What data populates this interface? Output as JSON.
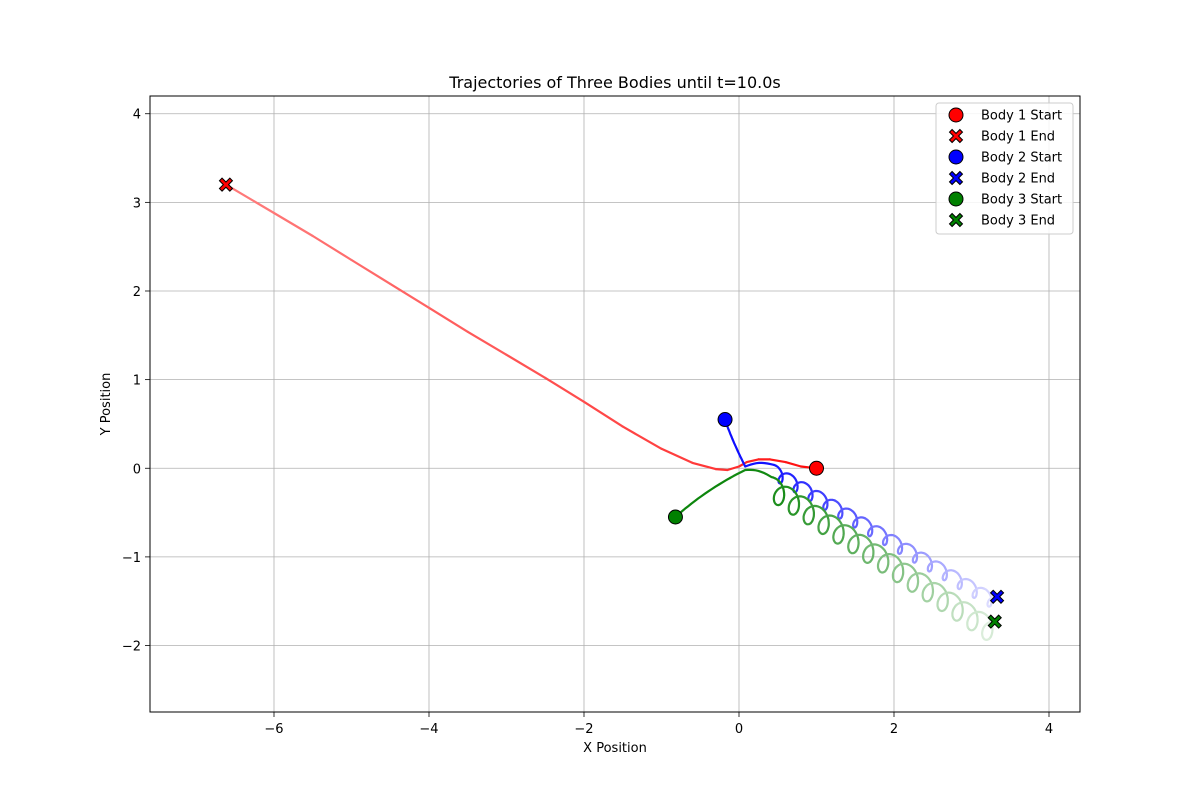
{
  "chart_data": {
    "type": "scatter",
    "title": "Trajectories of Three Bodies until t=10.0s",
    "xlabel": "X Position",
    "ylabel": "Y Position",
    "xlim": [
      -7.6,
      4.4
    ],
    "ylim": [
      -2.75,
      4.2
    ],
    "xticks": [
      -6,
      -4,
      -2,
      0,
      2,
      4
    ],
    "yticks": [
      -2,
      -1,
      0,
      1,
      2,
      3,
      4
    ],
    "xtick_labels": [
      "−6",
      "−4",
      "−2",
      "0",
      "2",
      "4"
    ],
    "ytick_labels": [
      "−2",
      "−1",
      "0",
      "1",
      "2",
      "3",
      "4"
    ],
    "grid": true,
    "legend_position": "top-right",
    "series": [
      {
        "name": "Body 1",
        "color": "#ff0000",
        "start_label": "Body 1 Start",
        "end_label": "Body 1 End",
        "start": [
          1.0,
          0.0
        ],
        "end": [
          -6.62,
          3.2
        ],
        "path": [
          [
            1.0,
            0.0
          ],
          [
            0.8,
            0.02
          ],
          [
            0.6,
            0.07
          ],
          [
            0.4,
            0.1
          ],
          [
            0.25,
            0.1
          ],
          [
            0.1,
            0.07
          ],
          [
            0.0,
            0.02
          ],
          [
            -0.15,
            -0.02
          ],
          [
            -0.3,
            -0.01
          ],
          [
            -0.6,
            0.06
          ],
          [
            -1.0,
            0.22
          ],
          [
            -1.5,
            0.47
          ],
          [
            -2.0,
            0.75
          ],
          [
            -2.5,
            1.02
          ],
          [
            -3.0,
            1.28
          ],
          [
            -3.5,
            1.54
          ],
          [
            -4.0,
            1.81
          ],
          [
            -4.5,
            2.08
          ],
          [
            -5.0,
            2.35
          ],
          [
            -5.5,
            2.62
          ],
          [
            -6.0,
            2.88
          ],
          [
            -6.62,
            3.2
          ]
        ]
      },
      {
        "name": "Body 2",
        "color": "#0000ff",
        "start_label": "Body 2 Start",
        "end_label": "Body 2 End",
        "start": [
          -0.18,
          0.55
        ],
        "end": [
          3.33,
          -1.45
        ],
        "drift": [
          0.08,
          0.02,
          0.44,
          0.04,
          3.33,
          -1.45
        ],
        "loop_radius": 0.08,
        "loops": 15
      },
      {
        "name": "Body 3",
        "color": "#008000",
        "start_label": "Body 3 Start",
        "end_label": "Body 3 End",
        "start": [
          -0.82,
          -0.55
        ],
        "end": [
          3.3,
          -1.73
        ],
        "drift": [
          0.08,
          -0.02,
          0.42,
          -0.1,
          3.3,
          -1.73
        ],
        "loop_radius": 0.13,
        "loops": 15
      }
    ]
  }
}
